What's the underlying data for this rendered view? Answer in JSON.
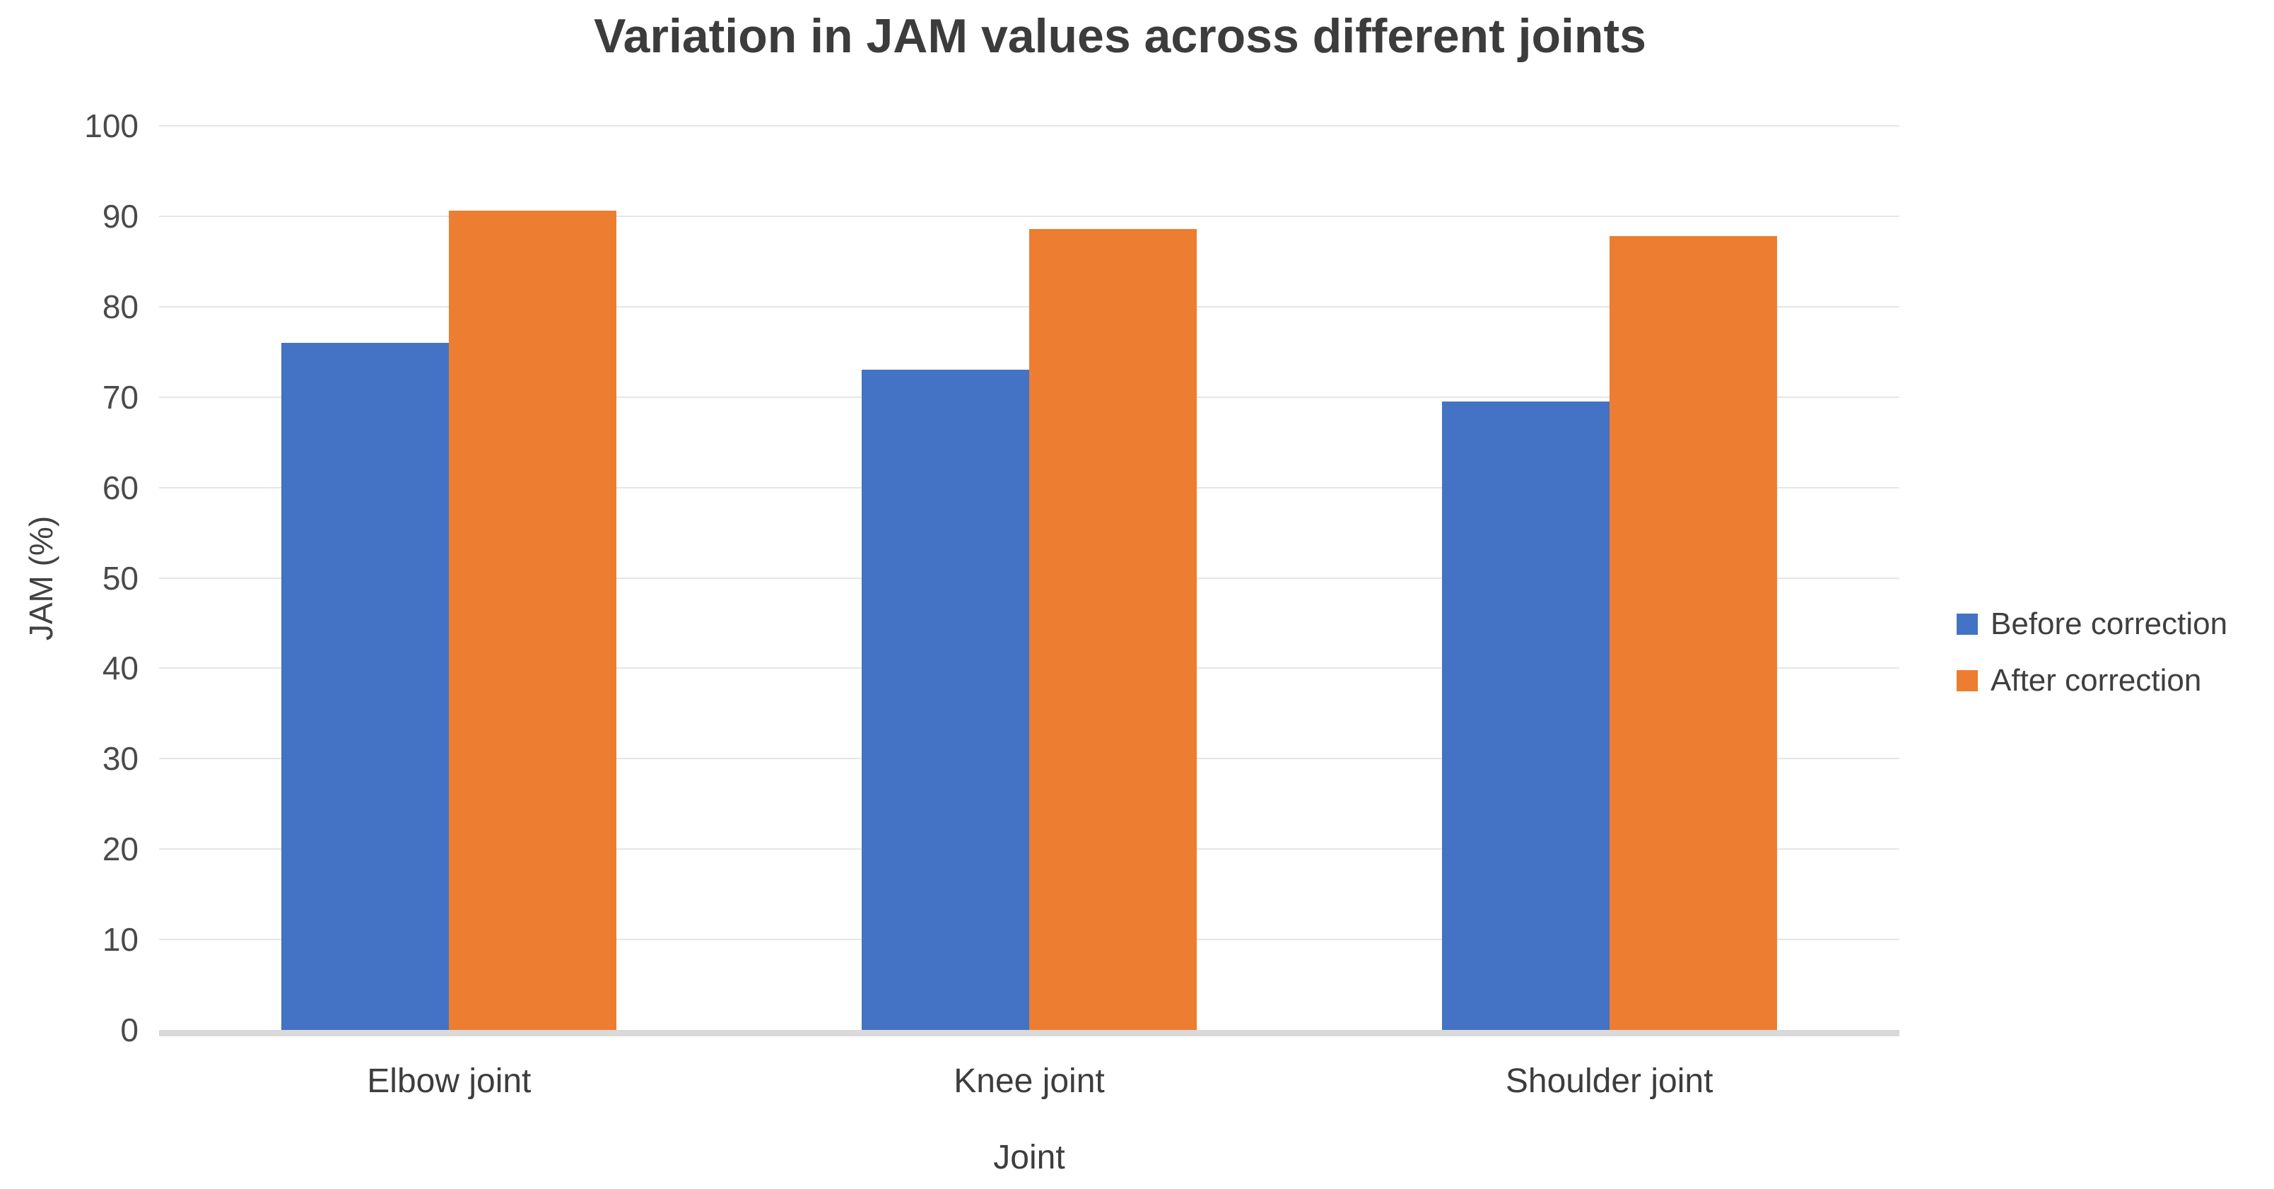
{
  "chart_data": {
    "type": "bar",
    "title": "Variation in JAM values across different joints",
    "xlabel": "Joint",
    "ylabel": "JAM (%)",
    "categories": [
      "Elbow joint",
      "Knee joint",
      "Shoulder joint"
    ],
    "series": [
      {
        "name": "Before correction",
        "color": "#4472C4",
        "values": [
          76,
          73,
          69.5
        ]
      },
      {
        "name": "After correction",
        "color": "#ED7D31",
        "values": [
          90.6,
          88.6,
          87.8
        ]
      }
    ],
    "ylim": [
      0,
      100
    ],
    "yticks": [
      0,
      10,
      20,
      30,
      40,
      50,
      60,
      70,
      80,
      90,
      100
    ],
    "grid": "horizontal",
    "legend_position": "right",
    "colors": {
      "background": "#ffffff",
      "gridline": "#e6e6e6",
      "axis_line": "#d9d9d9",
      "title_text": "#3c3c3c",
      "tick_text": "#4a4a4a"
    }
  }
}
